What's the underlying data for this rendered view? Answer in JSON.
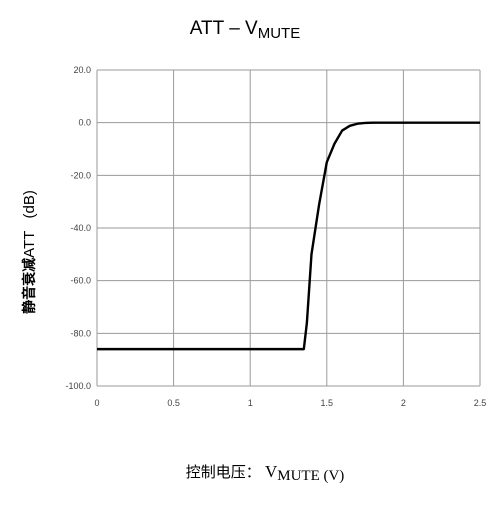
{
  "chart_data": {
    "type": "line",
    "title": "ATT – V",
    "title_subscript": "MUTE",
    "ylabel_cn": "静音衰减",
    "ylabel": "ATT   (dB)",
    "xlabel_cn": "控制电压：",
    "xlabel_main": "V",
    "xlabel_subscript": "MUTE (V)",
    "xlim": [
      0,
      2.5
    ],
    "ylim": [
      -100,
      20
    ],
    "x_ticks": [
      "0",
      "0.5",
      "1",
      "1.5",
      "2",
      "2.5"
    ],
    "y_ticks": [
      "20.0",
      "0.0",
      "-20.0",
      "-40.0",
      "-60.0",
      "-80.0",
      "-100.0"
    ],
    "grid": true,
    "series": [
      {
        "x": [
          0,
          1.35,
          1.37,
          1.4,
          1.45,
          1.5,
          1.55,
          1.6,
          1.65,
          1.7,
          1.75,
          1.8,
          2.0,
          2.5
        ],
        "y": [
          -86,
          -86,
          -76,
          -50,
          -31,
          -15,
          -8,
          -3,
          -1.2,
          -0.4,
          -0.1,
          0,
          0,
          0
        ]
      }
    ]
  }
}
